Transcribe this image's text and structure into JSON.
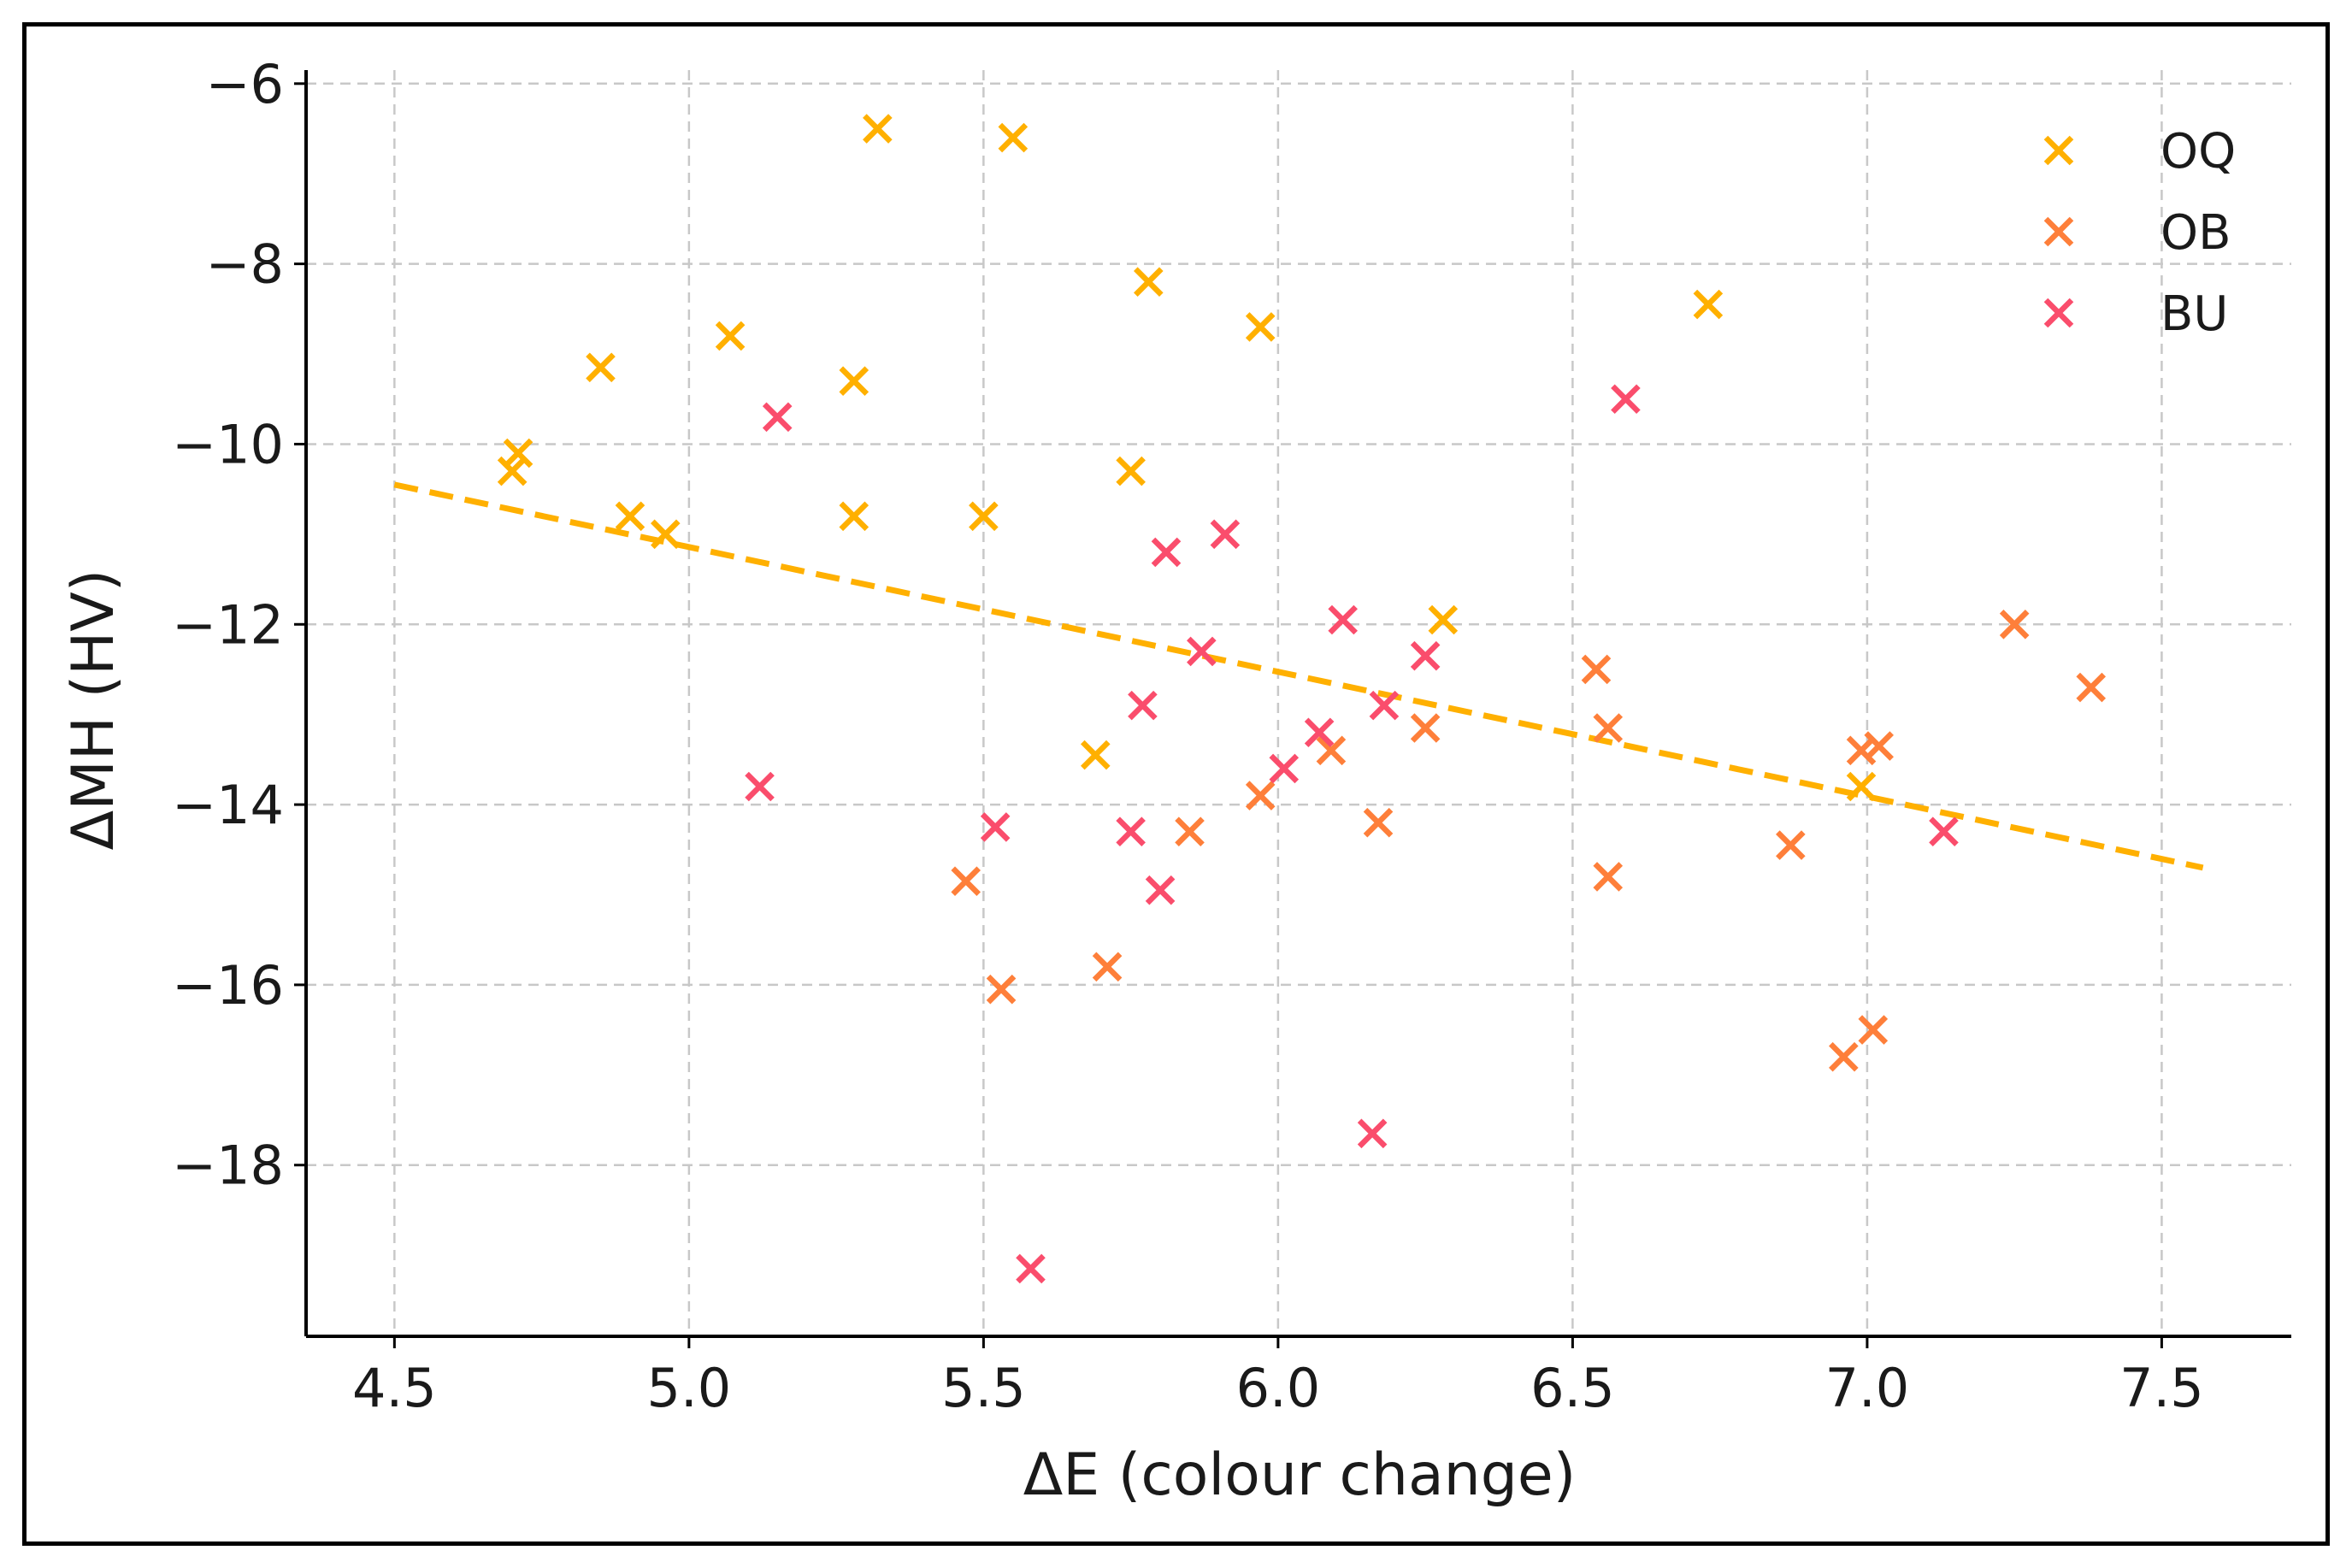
{
  "chart_data": {
    "type": "scatter",
    "xlabel": "ΔE (colour change)",
    "ylabel": "ΔMH (HV)",
    "xlim": [
      4.35,
      7.72
    ],
    "ylim": [
      -19.9,
      -5.85
    ],
    "xticks": [
      "4.5",
      "5.0",
      "5.5",
      "6.0",
      "6.5",
      "7.0",
      "7.5"
    ],
    "xtick_values": [
      4.5,
      5.0,
      5.5,
      6.0,
      6.5,
      7.0,
      7.5
    ],
    "yticks": [
      "−6",
      "−8",
      "−10",
      "−12",
      "−14",
      "−16",
      "−18"
    ],
    "ytick_values": [
      -6,
      -8,
      -10,
      -12,
      -14,
      -16,
      -18
    ],
    "grid": true,
    "legend_position": "top-right",
    "marker": "x",
    "series": [
      {
        "name": "OQ",
        "color": "#FFB000",
        "points": [
          [
            4.7,
            -10.3
          ],
          [
            4.71,
            -10.1
          ],
          [
            4.85,
            -9.15
          ],
          [
            4.9,
            -10.8
          ],
          [
            4.96,
            -11.0
          ],
          [
            5.07,
            -8.8
          ],
          [
            5.28,
            -9.3
          ],
          [
            5.28,
            -10.8
          ],
          [
            5.32,
            -6.5
          ],
          [
            5.5,
            -10.8
          ],
          [
            5.55,
            -6.6
          ],
          [
            5.69,
            -13.45
          ],
          [
            5.75,
            -10.3
          ],
          [
            5.78,
            -8.2
          ],
          [
            5.97,
            -8.7
          ],
          [
            6.28,
            -11.95
          ],
          [
            6.73,
            -8.45
          ],
          [
            6.99,
            -13.8
          ]
        ]
      },
      {
        "name": "OB",
        "color": "#FE7F3A",
        "points": [
          [
            5.47,
            -14.85
          ],
          [
            5.53,
            -16.05
          ],
          [
            5.71,
            -15.8
          ],
          [
            5.85,
            -14.3
          ],
          [
            5.97,
            -13.9
          ],
          [
            6.09,
            -13.4
          ],
          [
            6.17,
            -14.2
          ],
          [
            6.25,
            -13.15
          ],
          [
            6.54,
            -12.5
          ],
          [
            6.56,
            -13.15
          ],
          [
            6.56,
            -14.8
          ],
          [
            6.87,
            -14.45
          ],
          [
            6.96,
            -16.8
          ],
          [
            6.99,
            -13.4
          ],
          [
            7.01,
            -16.5
          ],
          [
            7.02,
            -13.35
          ],
          [
            7.25,
            -12.0
          ],
          [
            7.38,
            -12.7
          ]
        ]
      },
      {
        "name": "BU",
        "color": "#FA4D6C",
        "points": [
          [
            5.12,
            -13.8
          ],
          [
            5.15,
            -9.7
          ],
          [
            5.52,
            -14.25
          ],
          [
            5.58,
            -19.15
          ],
          [
            5.75,
            -14.3
          ],
          [
            5.77,
            -12.9
          ],
          [
            5.8,
            -14.95
          ],
          [
            5.81,
            -11.2
          ],
          [
            5.87,
            -12.3
          ],
          [
            5.91,
            -11.0
          ],
          [
            6.01,
            -13.6
          ],
          [
            6.07,
            -13.2
          ],
          [
            6.11,
            -11.95
          ],
          [
            6.16,
            -17.65
          ],
          [
            6.18,
            -12.9
          ],
          [
            6.25,
            -12.35
          ],
          [
            6.59,
            -9.5
          ],
          [
            7.13,
            -14.3
          ]
        ]
      }
    ],
    "trendline": {
      "color": "#FFB000",
      "style": "dashed",
      "x": [
        4.5,
        7.57
      ],
      "y": [
        -10.45,
        -14.7
      ]
    }
  }
}
